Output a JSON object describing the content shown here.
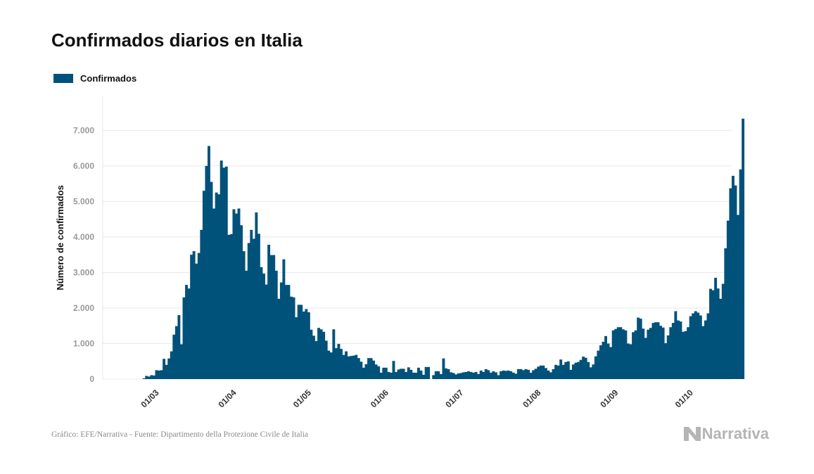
{
  "title": "Confirmados diarios en Italia",
  "footer": "Gráfico: EFE/Narrativa - Fuente: Dipartimento della Protezione Civile de Italia",
  "logo_text": "Narrativa",
  "colors": {
    "bar": "#00527a",
    "grid": "#e8e8e8",
    "tick": "#999999",
    "axis_label": "#111111"
  },
  "chart_data": {
    "type": "bar",
    "title": "Confirmados diarios en Italia",
    "ylabel": "Número de confirmados",
    "xlabel": "",
    "ylim": [
      0,
      7700
    ],
    "yticks": [
      0,
      1000,
      2000,
      3000,
      4000,
      5000,
      6000,
      7000
    ],
    "ytick_labels": [
      "0",
      "1.000",
      "2.000",
      "3.000",
      "4.000",
      "5.000",
      "6.000",
      "7.000"
    ],
    "grid": true,
    "legend": "top-left",
    "x_start": "2020-02-09",
    "x_end": "2020-10-18",
    "xtick_labels": [
      "01/03",
      "01/04",
      "01/05",
      "01/06",
      "01/07",
      "01/08",
      "01/09",
      "01/10"
    ],
    "xtick_dates": [
      "2020-03-01",
      "2020-04-01",
      "2020-05-01",
      "2020-06-01",
      "2020-07-01",
      "2020-08-01",
      "2020-09-01",
      "2020-10-01"
    ],
    "series": [
      {
        "name": "Confirmados",
        "start_date": "2020-02-24",
        "values": [
          0,
          20,
          90,
          70,
          110,
          100,
          250,
          240,
          250,
          570,
          400,
          580,
          780,
          1250,
          1490,
          1800,
          980,
          2300,
          2650,
          2550,
          3500,
          3600,
          3250,
          3550,
          4200,
          5300,
          6000,
          6560,
          5550,
          4800,
          5250,
          5200,
          6150,
          5950,
          5980,
          4060,
          4080,
          4780,
          4660,
          4800,
          4330,
          3600,
          3050,
          3830,
          4200,
          3950,
          4690,
          4090,
          3150,
          2970,
          2660,
          3780,
          3490,
          3490,
          3050,
          2260,
          2720,
          3370,
          2650,
          2650,
          2320,
          2300,
          1740,
          2090,
          2090,
          1900,
          1970,
          1880,
          1390,
          1220,
          1070,
          1440,
          1400,
          1330,
          1080,
          800,
          750,
          1400,
          870,
          990,
          850,
          680,
          780,
          640,
          650,
          660,
          680,
          590,
          490,
          320,
          420,
          590,
          590,
          520,
          410,
          360,
          180,
          320,
          320,
          200,
          180,
          510,
          200,
          270,
          290,
          290,
          200,
          330,
          260,
          180,
          180,
          320,
          240,
          120,
          340,
          340,
          0,
          110,
          220,
          220,
          140,
          580,
          300,
          280,
          190,
          170,
          130,
          160,
          170,
          190,
          200,
          220,
          200,
          180,
          200,
          140,
          240,
          200,
          280,
          250,
          180,
          220,
          190,
          110,
          220,
          240,
          230,
          240,
          220,
          180,
          150,
          280,
          280,
          250,
          280,
          260,
          180,
          250,
          290,
          350,
          380,
          380,
          310,
          240,
          190,
          280,
          400,
          380,
          550,
          400,
          480,
          500,
          260,
          410,
          460,
          480,
          540,
          630,
          600,
          480,
          330,
          410,
          640,
          800,
          950,
          1050,
          1210,
          1000,
          900,
          1370,
          1410,
          1460,
          1460,
          1400,
          1370,
          1000,
          980,
          1320,
          1370,
          1730,
          1700,
          1420,
          1160,
          1390,
          1440,
          1580,
          1600,
          1600,
          1500,
          1450,
          1010,
          1230,
          1460,
          1580,
          1910,
          1650,
          1620,
          1330,
          1350,
          1460,
          1770,
          1850,
          1910,
          1870,
          1790,
          1490,
          1650,
          1850,
          2540,
          2500,
          2850,
          2550,
          2260,
          2680,
          3680,
          4460,
          5370,
          5720,
          5450,
          4620,
          5900,
          7330
        ]
      }
    ]
  }
}
